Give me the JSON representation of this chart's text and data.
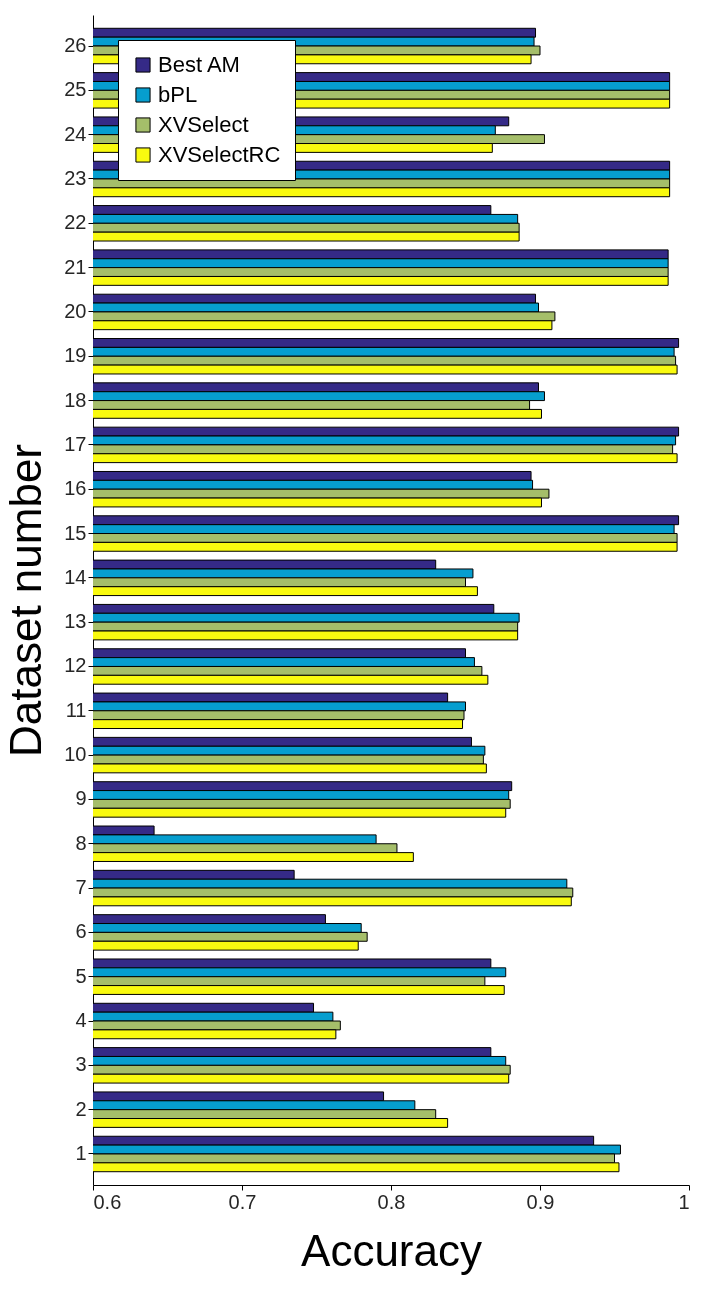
{
  "chart_data": {
    "type": "bar",
    "orientation": "horizontal",
    "xlabel": "Accuracy",
    "ylabel": "Dataset number",
    "categories": [
      "26",
      "25",
      "24",
      "23",
      "22",
      "21",
      "20",
      "19",
      "18",
      "17",
      "16",
      "15",
      "14",
      "13",
      "12",
      "11",
      "10",
      "9",
      "8",
      "7",
      "6",
      "5",
      "4",
      "3",
      "2",
      "1"
    ],
    "series": [
      {
        "name": "Best AM",
        "color": "#352a87",
        "values": [
          0.897,
          0.987,
          0.879,
          0.987,
          0.867,
          0.986,
          0.897,
          0.993,
          0.899,
          0.993,
          0.894,
          0.993,
          0.83,
          0.869,
          0.85,
          0.838,
          0.854,
          0.881,
          0.641,
          0.735,
          0.756,
          0.867,
          0.748,
          0.867,
          0.795,
          0.936
        ]
      },
      {
        "name": "bPL",
        "color": "#069ecf",
        "values": [
          0.896,
          0.987,
          0.87,
          0.987,
          0.885,
          0.986,
          0.899,
          0.99,
          0.903,
          0.991,
          0.895,
          0.99,
          0.855,
          0.886,
          0.856,
          0.85,
          0.863,
          0.879,
          0.79,
          0.918,
          0.78,
          0.877,
          0.761,
          0.877,
          0.816,
          0.954
        ]
      },
      {
        "name": "XVSelect",
        "color": "#a5be6a",
        "values": [
          0.9,
          0.987,
          0.903,
          0.987,
          0.886,
          0.986,
          0.91,
          0.991,
          0.893,
          0.989,
          0.906,
          0.992,
          0.85,
          0.885,
          0.861,
          0.849,
          0.862,
          0.88,
          0.804,
          0.922,
          0.784,
          0.863,
          0.766,
          0.88,
          0.83,
          0.95
        ]
      },
      {
        "name": "XVSelectRC",
        "color": "#f9fa0f",
        "values": [
          0.894,
          0.987,
          0.868,
          0.987,
          0.886,
          0.986,
          0.908,
          0.992,
          0.901,
          0.992,
          0.901,
          0.992,
          0.858,
          0.885,
          0.865,
          0.848,
          0.864,
          0.877,
          0.815,
          0.921,
          0.778,
          0.876,
          0.763,
          0.879,
          0.838,
          0.953
        ]
      }
    ],
    "xlim": [
      0.6,
      1
    ],
    "xticks": [
      0.6,
      0.7,
      0.8,
      0.9,
      1
    ],
    "legend": "top left",
    "grid": false
  }
}
